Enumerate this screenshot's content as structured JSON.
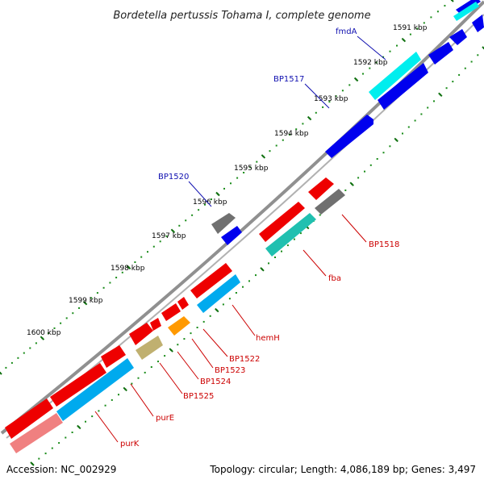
{
  "title": "Bordetella pertussis Tohama I, complete genome",
  "footer": {
    "accession": "Accession: NC_002929",
    "summary": "Topology: circular; Length: 4,086,189 bp; Genes: 3,497"
  },
  "colors": {
    "backbone": "#808080",
    "tick_dots": "#1a8c1a",
    "label_forward": "#1010b0",
    "label_reverse": "#cc0000",
    "red": "#ee0000",
    "pink": "#f08080",
    "deepskyblue": "#00aaee",
    "blue": "#0000ee",
    "gray": "#707070",
    "cyan": "#00eeee",
    "teal": "#20c0b0",
    "orange": "#ff9900",
    "khaki": "#c0b070"
  },
  "ticks": [
    {
      "label": "1591 kbp"
    },
    {
      "label": "1592 kbp"
    },
    {
      "label": "1593 kbp"
    },
    {
      "label": "1594 kbp"
    },
    {
      "label": "1595 kbp"
    },
    {
      "label": "1596 kbp"
    },
    {
      "label": "1597 kbp"
    },
    {
      "label": "1598 kbp"
    },
    {
      "label": "1599 kbp"
    },
    {
      "label": "1600 kbp"
    }
  ],
  "gene_labels": [
    {
      "text": "fmdA",
      "strand": "forward"
    },
    {
      "text": "BP1517",
      "strand": "forward"
    },
    {
      "text": "BP1520",
      "strand": "forward"
    },
    {
      "text": "BP1518",
      "strand": "reverse"
    },
    {
      "text": "fba",
      "strand": "reverse"
    },
    {
      "text": "hemH",
      "strand": "reverse"
    },
    {
      "text": "BP1522",
      "strand": "reverse"
    },
    {
      "text": "BP1523",
      "strand": "reverse"
    },
    {
      "text": "BP1524",
      "strand": "reverse"
    },
    {
      "text": "BP1525",
      "strand": "reverse"
    },
    {
      "text": "purE",
      "strand": "reverse"
    },
    {
      "text": "purK",
      "strand": "reverse"
    }
  ]
}
